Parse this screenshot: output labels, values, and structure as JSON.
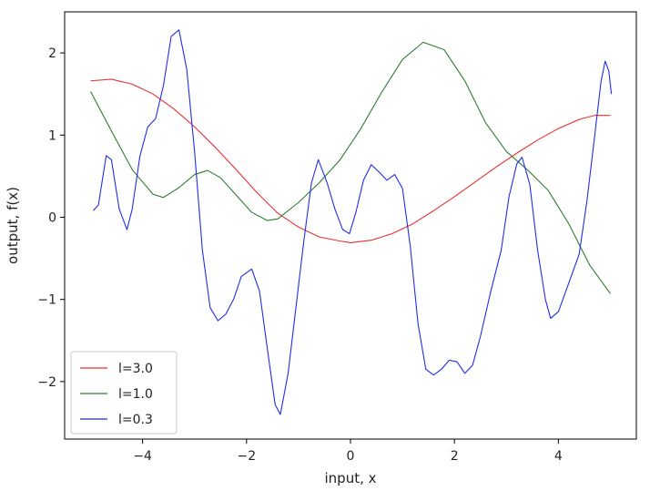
{
  "chart_data": {
    "type": "line",
    "title": "",
    "xlabel": "input, x",
    "ylabel": "output, f(x)",
    "xlim": [
      -5.5,
      5.5
    ],
    "ylim": [
      -2.7,
      2.5
    ],
    "xticks": [
      -4,
      -2,
      0,
      2,
      4
    ],
    "yticks": [
      -2,
      -1,
      0,
      1,
      2
    ],
    "grid": false,
    "legend_position": "lower-left",
    "series": [
      {
        "name": "l=3.0",
        "color": "#e8302f",
        "points": [
          [
            -5.0,
            1.66
          ],
          [
            -4.6,
            1.68
          ],
          [
            -4.2,
            1.62
          ],
          [
            -3.8,
            1.5
          ],
          [
            -3.4,
            1.32
          ],
          [
            -3.0,
            1.1
          ],
          [
            -2.6,
            0.85
          ],
          [
            -2.2,
            0.58
          ],
          [
            -1.8,
            0.3
          ],
          [
            -1.4,
            0.05
          ],
          [
            -1.0,
            -0.12
          ],
          [
            -0.6,
            -0.24
          ],
          [
            -0.2,
            -0.29
          ],
          [
            0.0,
            -0.31
          ],
          [
            0.4,
            -0.28
          ],
          [
            0.8,
            -0.2
          ],
          [
            1.2,
            -0.08
          ],
          [
            1.6,
            0.08
          ],
          [
            2.0,
            0.25
          ],
          [
            2.4,
            0.43
          ],
          [
            2.8,
            0.61
          ],
          [
            3.2,
            0.78
          ],
          [
            3.6,
            0.94
          ],
          [
            4.0,
            1.08
          ],
          [
            4.4,
            1.19
          ],
          [
            4.7,
            1.24
          ],
          [
            5.0,
            1.24
          ]
        ]
      },
      {
        "name": "l=1.0",
        "color": "#2e7d2e",
        "points": [
          [
            -5.0,
            1.53
          ],
          [
            -4.6,
            1.05
          ],
          [
            -4.2,
            0.58
          ],
          [
            -3.8,
            0.28
          ],
          [
            -3.6,
            0.24
          ],
          [
            -3.3,
            0.36
          ],
          [
            -3.0,
            0.52
          ],
          [
            -2.75,
            0.57
          ],
          [
            -2.5,
            0.48
          ],
          [
            -2.2,
            0.27
          ],
          [
            -1.9,
            0.06
          ],
          [
            -1.6,
            -0.04
          ],
          [
            -1.4,
            -0.02
          ],
          [
            -1.0,
            0.18
          ],
          [
            -0.6,
            0.42
          ],
          [
            -0.2,
            0.7
          ],
          [
            0.2,
            1.08
          ],
          [
            0.6,
            1.52
          ],
          [
            1.0,
            1.92
          ],
          [
            1.4,
            2.13
          ],
          [
            1.8,
            2.04
          ],
          [
            2.2,
            1.66
          ],
          [
            2.6,
            1.15
          ],
          [
            3.0,
            0.8
          ],
          [
            3.4,
            0.58
          ],
          [
            3.8,
            0.33
          ],
          [
            4.2,
            -0.08
          ],
          [
            4.6,
            -0.58
          ],
          [
            5.0,
            -0.93
          ]
        ]
      },
      {
        "name": "l=0.3",
        "color": "#1f2ee8",
        "points": [
          [
            -4.95,
            0.08
          ],
          [
            -4.85,
            0.15
          ],
          [
            -4.7,
            0.75
          ],
          [
            -4.6,
            0.7
          ],
          [
            -4.45,
            0.1
          ],
          [
            -4.3,
            -0.15
          ],
          [
            -4.2,
            0.1
          ],
          [
            -4.05,
            0.75
          ],
          [
            -3.9,
            1.1
          ],
          [
            -3.75,
            1.2
          ],
          [
            -3.6,
            1.6
          ],
          [
            -3.45,
            2.2
          ],
          [
            -3.3,
            2.28
          ],
          [
            -3.15,
            1.8
          ],
          [
            -3.0,
            0.8
          ],
          [
            -2.85,
            -0.4
          ],
          [
            -2.7,
            -1.1
          ],
          [
            -2.55,
            -1.26
          ],
          [
            -2.4,
            -1.18
          ],
          [
            -2.25,
            -1.0
          ],
          [
            -2.1,
            -0.72
          ],
          [
            -1.9,
            -0.63
          ],
          [
            -1.75,
            -0.9
          ],
          [
            -1.6,
            -1.6
          ],
          [
            -1.45,
            -2.28
          ],
          [
            -1.35,
            -2.4
          ],
          [
            -1.2,
            -1.9
          ],
          [
            -1.05,
            -1.1
          ],
          [
            -0.9,
            -0.3
          ],
          [
            -0.75,
            0.42
          ],
          [
            -0.62,
            0.7
          ],
          [
            -0.45,
            0.42
          ],
          [
            -0.3,
            0.1
          ],
          [
            -0.15,
            -0.15
          ],
          [
            -0.02,
            -0.2
          ],
          [
            0.1,
            0.05
          ],
          [
            0.25,
            0.45
          ],
          [
            0.4,
            0.64
          ],
          [
            0.55,
            0.55
          ],
          [
            0.7,
            0.45
          ],
          [
            0.85,
            0.52
          ],
          [
            1.0,
            0.35
          ],
          [
            1.15,
            -0.35
          ],
          [
            1.3,
            -1.3
          ],
          [
            1.45,
            -1.85
          ],
          [
            1.6,
            -1.92
          ],
          [
            1.75,
            -1.85
          ],
          [
            1.9,
            -1.74
          ],
          [
            2.05,
            -1.76
          ],
          [
            2.2,
            -1.9
          ],
          [
            2.35,
            -1.8
          ],
          [
            2.5,
            -1.45
          ],
          [
            2.7,
            -0.9
          ],
          [
            2.9,
            -0.4
          ],
          [
            3.05,
            0.25
          ],
          [
            3.2,
            0.65
          ],
          [
            3.3,
            0.73
          ],
          [
            3.45,
            0.4
          ],
          [
            3.6,
            -0.4
          ],
          [
            3.75,
            -1.0
          ],
          [
            3.85,
            -1.23
          ],
          [
            4.0,
            -1.15
          ],
          [
            4.2,
            -0.8
          ],
          [
            4.4,
            -0.45
          ],
          [
            4.55,
            0.2
          ],
          [
            4.7,
            1.0
          ],
          [
            4.82,
            1.65
          ],
          [
            4.9,
            1.9
          ],
          [
            4.97,
            1.78
          ],
          [
            5.02,
            1.5
          ]
        ]
      }
    ]
  }
}
